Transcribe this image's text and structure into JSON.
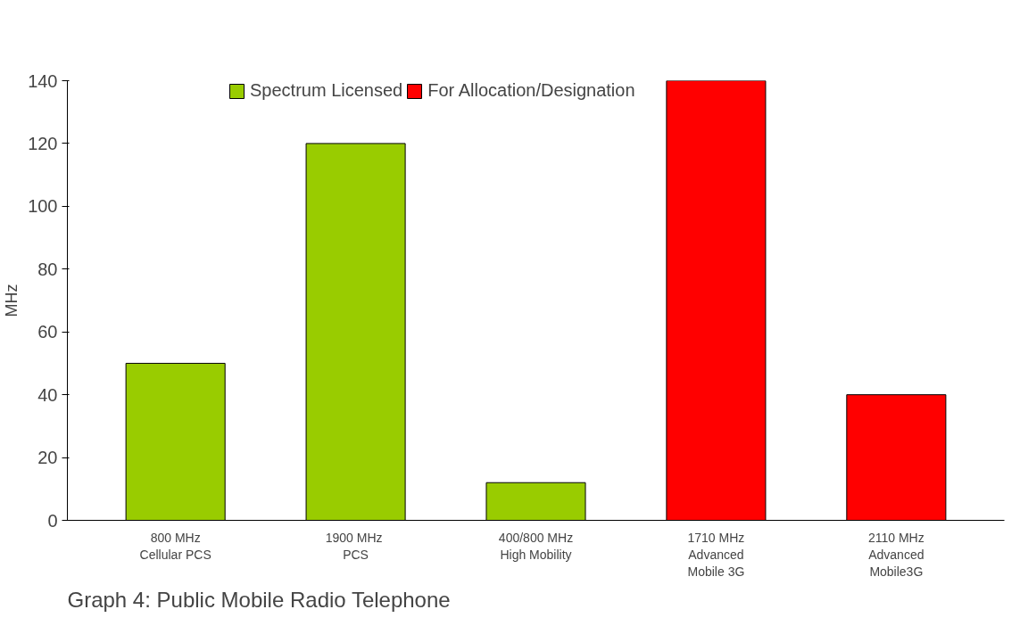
{
  "chart_data": {
    "type": "bar",
    "title": "Graph 4:  Public Mobile Radio Telephone",
    "ylabel": "MHz",
    "categories": [
      "800 MHz\nCellular PCS",
      "1900  MHz\nPCS",
      "400/800 MHz\nHigh Mobility",
      "1710 MHz\nAdvanced\nMobile 3G",
      "2110 MHz\nAdvanced\nMobile3G"
    ],
    "series": [
      {
        "name": "Spectrum Licensed",
        "color": "#99cc00",
        "values": [
          50,
          120,
          12,
          null,
          null
        ]
      },
      {
        "name": "For Allocation/Designation",
        "color": "#ff0000",
        "values": [
          null,
          null,
          null,
          140,
          40
        ]
      }
    ],
    "ylim": [
      0,
      140
    ],
    "yticks": [
      0,
      20,
      40,
      60,
      80,
      100,
      120,
      140
    ],
    "grid": false,
    "legend": "top"
  }
}
